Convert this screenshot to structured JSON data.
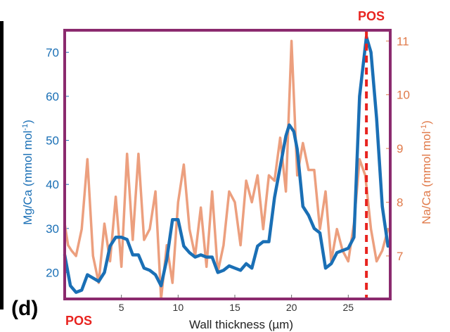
{
  "chart_data": {
    "type": "line",
    "panel_label": "(d)",
    "xlabel": "Wall thickness (µm)",
    "xlim": [
      0,
      28.7
    ],
    "xticks": [
      5,
      10,
      15,
      20,
      25
    ],
    "ylabel_left": "Mg/Ca (mmol mol",
    "ylabel_left_sup": "-1",
    "ylabel_left_end": ")",
    "ylim_left": [
      14,
      75
    ],
    "yticks_left": [
      20,
      30,
      40,
      50,
      60,
      70
    ],
    "ylabel_right": "Na/Ca (mmol mol",
    "ylabel_right_sup": "-1",
    "ylabel_right_end": ")",
    "ylim_right": [
      6.2,
      11.2
    ],
    "yticks_right": [
      7,
      8,
      9,
      10,
      11
    ],
    "annotations": {
      "pos_top": "POS",
      "pos_bottom": "POS",
      "pos_line_x": 26.6
    },
    "series": [
      {
        "axis": "left",
        "color": "#1a6fb5",
        "points": [
          [
            0,
            24
          ],
          [
            0.5,
            17
          ],
          [
            1,
            15.5
          ],
          [
            1.5,
            16
          ],
          [
            2,
            19.5
          ],
          [
            3,
            18
          ],
          [
            3.5,
            20
          ],
          [
            4,
            26
          ],
          [
            4.5,
            28
          ],
          [
            5,
            28
          ],
          [
            5.5,
            27.5
          ],
          [
            6,
            24
          ],
          [
            6.5,
            24
          ],
          [
            7,
            21
          ],
          [
            7.5,
            20.5
          ],
          [
            8,
            19.5
          ],
          [
            8.5,
            17
          ],
          [
            9,
            23
          ],
          [
            9.5,
            32
          ],
          [
            10,
            32
          ],
          [
            10.5,
            26
          ],
          [
            11,
            24.5
          ],
          [
            11.5,
            23.5
          ],
          [
            12,
            24
          ],
          [
            12.5,
            23.5
          ],
          [
            13,
            23.5
          ],
          [
            13.5,
            20
          ],
          [
            14,
            20.5
          ],
          [
            14.5,
            21.5
          ],
          [
            15,
            21
          ],
          [
            15.5,
            20.5
          ],
          [
            16,
            22
          ],
          [
            16.5,
            21
          ],
          [
            17,
            26
          ],
          [
            17.5,
            27
          ],
          [
            18,
            27
          ],
          [
            18.5,
            37
          ],
          [
            19,
            44
          ],
          [
            19.5,
            51
          ],
          [
            19.8,
            53.5
          ],
          [
            20.2,
            52
          ],
          [
            20.5,
            48
          ],
          [
            21,
            35
          ],
          [
            21.5,
            33
          ],
          [
            22,
            30
          ],
          [
            22.5,
            29
          ],
          [
            23,
            21
          ],
          [
            23.5,
            22
          ],
          [
            24,
            24.5
          ],
          [
            24.5,
            25
          ],
          [
            25,
            25.5
          ],
          [
            25.5,
            28
          ],
          [
            26,
            60
          ],
          [
            26.6,
            73.5
          ],
          [
            27,
            70
          ],
          [
            27.5,
            55
          ],
          [
            28,
            35
          ],
          [
            28.5,
            26
          ]
        ]
      },
      {
        "axis": "right",
        "color": "#ec9f7e",
        "points": [
          [
            0,
            7.6
          ],
          [
            0.3,
            7.2
          ],
          [
            0.6,
            7.1
          ],
          [
            1,
            7.0
          ],
          [
            1.5,
            7.5
          ],
          [
            2,
            8.8
          ],
          [
            2.5,
            7.0
          ],
          [
            3,
            6.5
          ],
          [
            3.5,
            7.6
          ],
          [
            4,
            6.9
          ],
          [
            4.5,
            8.1
          ],
          [
            5,
            6.8
          ],
          [
            5.5,
            8.9
          ],
          [
            6,
            7.3
          ],
          [
            6.5,
            8.9
          ],
          [
            7,
            7.3
          ],
          [
            7.5,
            7.5
          ],
          [
            8,
            8.2
          ],
          [
            8.5,
            6.2
          ],
          [
            9,
            7.2
          ],
          [
            9.5,
            6.5
          ],
          [
            10,
            8.0
          ],
          [
            10.5,
            8.7
          ],
          [
            11,
            7.5
          ],
          [
            11.5,
            7.0
          ],
          [
            12,
            7.9
          ],
          [
            12.5,
            6.8
          ],
          [
            13,
            8.2
          ],
          [
            13.5,
            6.7
          ],
          [
            14,
            7.2
          ],
          [
            14.5,
            8.2
          ],
          [
            15,
            8.0
          ],
          [
            15.5,
            7.2
          ],
          [
            16,
            8.4
          ],
          [
            16.5,
            8.0
          ],
          [
            17,
            8.5
          ],
          [
            17.5,
            7.5
          ],
          [
            18,
            8.5
          ],
          [
            18.5,
            8.4
          ],
          [
            19,
            9.2
          ],
          [
            19.5,
            8.2
          ],
          [
            20,
            11.0
          ],
          [
            20.5,
            8.5
          ],
          [
            21,
            9.1
          ],
          [
            21.5,
            8.6
          ],
          [
            22,
            8.6
          ],
          [
            22.5,
            7.5
          ],
          [
            23,
            8.2
          ],
          [
            23.5,
            6.9
          ],
          [
            24,
            7.5
          ],
          [
            24.5,
            7.1
          ],
          [
            25,
            6.9
          ],
          [
            25.5,
            7.6
          ],
          [
            26,
            8.8
          ],
          [
            26.5,
            8.5
          ],
          [
            27,
            7.5
          ],
          [
            27.5,
            6.9
          ],
          [
            28,
            7.1
          ],
          [
            28.5,
            7.5
          ]
        ]
      }
    ]
  }
}
